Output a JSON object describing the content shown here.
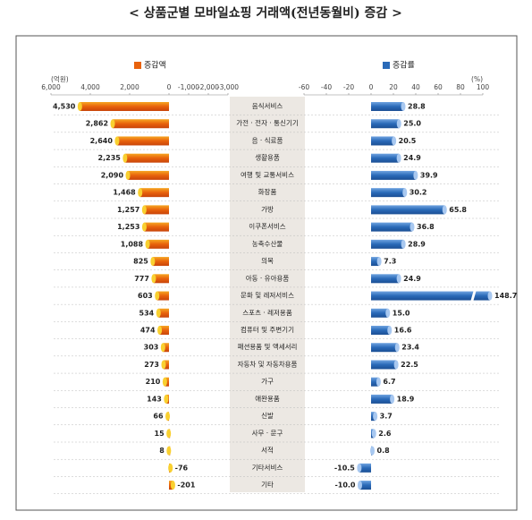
{
  "title": "< 상품군별 모바일쇼핑 거래액(전년동월비) 증감 >",
  "chart_data": [
    {
      "type": "bar",
      "orientation": "horizontal",
      "unit": "(억원)",
      "categories": [
        "음식서비스",
        "가전 · 전자 · 통신기기",
        "음 · 식료품",
        "생활용품",
        "여행 및 교통서비스",
        "화장품",
        "가방",
        "이쿠폰서비스",
        "농축수산물",
        "의복",
        "아동 · 유아용품",
        "문화 및 레저서비스",
        "스포츠 · 레저용품",
        "컴퓨터 및 주변기기",
        "패션용품 및 액세서리",
        "자동차 및 자동차용품",
        "가구",
        "애완용품",
        "신발",
        "사무 · 문구",
        "서적",
        "기타서비스",
        "기타"
      ],
      "series": [
        {
          "name": "증감액",
          "color": "#e8620c",
          "values": [
            4530,
            2862,
            2640,
            2235,
            2090,
            1468,
            1257,
            1253,
            1088,
            825,
            777,
            603,
            534,
            474,
            303,
            273,
            210,
            143,
            66,
            15,
            8,
            -76,
            -201
          ],
          "value_labels": [
            "4,530",
            "2,862",
            "2,640",
            "2,235",
            "2,090",
            "1,468",
            "1,257",
            "1,253",
            "1,088",
            "825",
            "777",
            "603",
            "534",
            "474",
            "303",
            "273",
            "210",
            "143",
            "66",
            "15",
            "8",
            "-76",
            "-201"
          ]
        }
      ],
      "xlim": [
        6000,
        -3000
      ],
      "xticks": [
        {
          "value": 6000,
          "label": "6,000"
        },
        {
          "value": 4000,
          "label": "4,000"
        },
        {
          "value": 2000,
          "label": "2,000"
        },
        0,
        {
          "value": -1000,
          "label": "-1,000"
        },
        {
          "value": -2000,
          "label": "-2,000"
        },
        {
          "value": -3000,
          "label": "-3,000"
        }
      ]
    },
    {
      "type": "bar",
      "orientation": "horizontal",
      "unit": "(%)",
      "series": [
        {
          "name": "증감률",
          "color": "#2a6ab8",
          "values": [
            28.8,
            25.0,
            20.5,
            24.9,
            39.9,
            30.2,
            65.8,
            36.8,
            28.9,
            7.3,
            24.9,
            148.7,
            15.0,
            16.6,
            23.4,
            22.5,
            6.7,
            18.9,
            3.7,
            2.6,
            0.8,
            -10.5,
            -10.0
          ],
          "value_labels": [
            "28.8",
            "25.0",
            "20.5",
            "24.9",
            "39.9",
            "30.2",
            "65.8",
            "36.8",
            "28.9",
            "7.3",
            "24.9",
            "148.7",
            "15.0",
            "16.6",
            "23.4",
            "22.5",
            "6.7",
            "18.9",
            "3.7",
            "2.6",
            "0.8",
            "-10.5",
            "-10.0"
          ]
        }
      ],
      "xlim": [
        -60,
        100
      ],
      "xticks": [
        -60,
        -40,
        -20,
        0,
        20,
        40,
        60,
        80,
        100
      ]
    }
  ]
}
